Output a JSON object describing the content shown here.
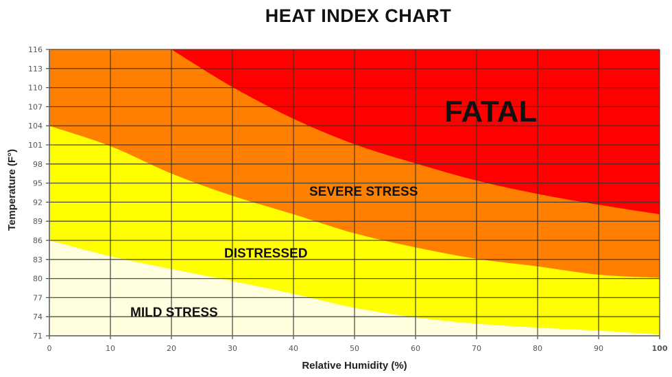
{
  "chart_data": {
    "type": "area",
    "title": "HEAT INDEX CHART",
    "xlabel": "Relative Humidity (%)",
    "ylabel": "Temperature (F°)",
    "xlim": [
      0,
      100
    ],
    "ylim": [
      71,
      116
    ],
    "x_ticks": [
      0,
      10,
      20,
      30,
      40,
      50,
      60,
      70,
      80,
      90,
      100
    ],
    "y_ticks": [
      71,
      74,
      77,
      80,
      83,
      86,
      89,
      92,
      95,
      98,
      101,
      104,
      107,
      110,
      113,
      116
    ],
    "grid": true,
    "zones": [
      {
        "name": "MILD STRESS",
        "color": "#ffffe0"
      },
      {
        "name": "DISTRESSED",
        "color": "#ffff00"
      },
      {
        "name": "SEVERE STRESS",
        "color": "#ff8000"
      },
      {
        "name": "FATAL",
        "color": "#ff0000"
      }
    ],
    "boundaries": [
      {
        "name": "mild-distressed",
        "x": [
          0,
          10,
          20,
          30,
          40,
          50,
          60,
          70,
          80,
          90,
          100
        ],
        "y": [
          86,
          83.5,
          81.5,
          79.6,
          77.6,
          75.4,
          73.9,
          72.9,
          72.3,
          71.8,
          71.2
        ]
      },
      {
        "name": "distressed-severe",
        "x": [
          0,
          10,
          20,
          30,
          40,
          50,
          60,
          70,
          80,
          90,
          100
        ],
        "y": [
          104,
          100.8,
          96.5,
          93,
          90.1,
          87.1,
          84.9,
          83.1,
          81.9,
          80.6,
          80.1
        ]
      },
      {
        "name": "severe-fatal",
        "x": [
          20,
          30,
          40,
          50,
          60,
          70,
          80,
          90,
          100
        ],
        "y": [
          116,
          110.1,
          105.1,
          101.1,
          98.1,
          95.4,
          93.3,
          91.6,
          90.1
        ]
      }
    ]
  }
}
